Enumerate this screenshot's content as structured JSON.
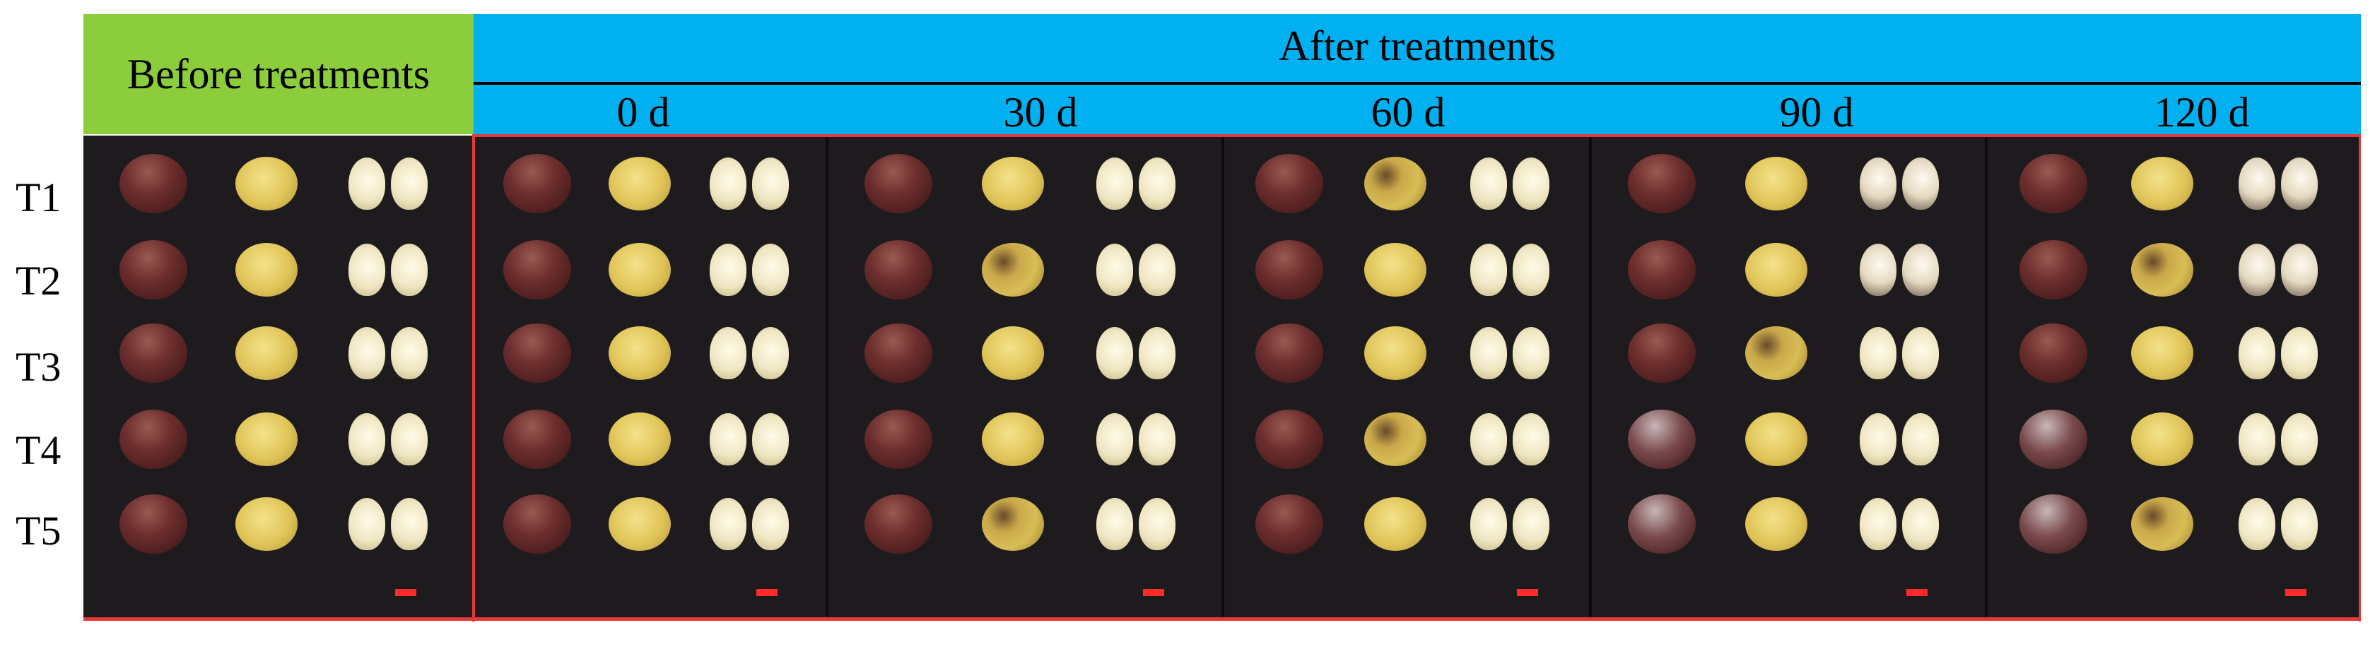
{
  "header": {
    "before_label": "Before treatments",
    "after_label": "After treatments",
    "days": [
      "0 d",
      "30 d",
      "60 d",
      "90 d",
      "120 d"
    ]
  },
  "rows": [
    "T1",
    "T2",
    "T3",
    "T4",
    "T5"
  ],
  "colors": {
    "before_header": "#8ccd3c",
    "after_header": "#00b0f0",
    "border": "#e03a3a",
    "background": "#1e1b1e",
    "scale_bar": "#ff2a2a"
  }
}
